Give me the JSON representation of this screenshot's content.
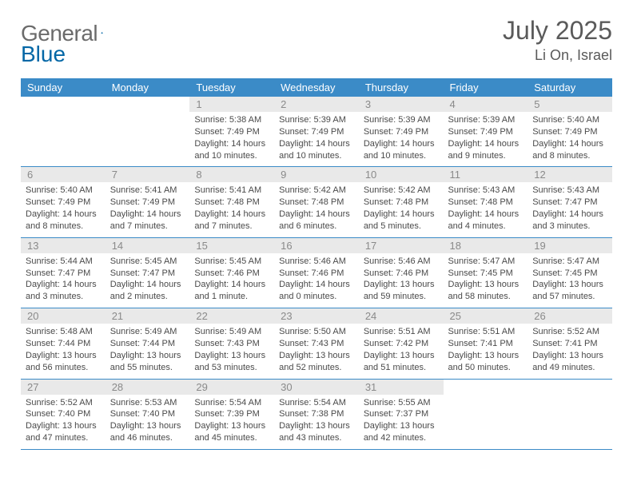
{
  "brand": {
    "word1": "General",
    "word2": "Blue",
    "color1": "#6b6b6b",
    "color2": "#0367a6"
  },
  "title": {
    "month": "July 2025",
    "location": "Li On, Israel"
  },
  "colors": {
    "header_bg": "#3b8bc7",
    "header_text": "#ffffff",
    "daynum_bg": "#e9e9e9",
    "daynum_text": "#8a8a8a",
    "rule": "#3b8bc7",
    "text": "#4a4a4a"
  },
  "weekdays": [
    "Sunday",
    "Monday",
    "Tuesday",
    "Wednesday",
    "Thursday",
    "Friday",
    "Saturday"
  ],
  "first_weekday_index": 2,
  "days": [
    {
      "n": 1,
      "sunrise": "5:38 AM",
      "sunset": "7:49 PM",
      "daylight": "14 hours and 10 minutes."
    },
    {
      "n": 2,
      "sunrise": "5:39 AM",
      "sunset": "7:49 PM",
      "daylight": "14 hours and 10 minutes."
    },
    {
      "n": 3,
      "sunrise": "5:39 AM",
      "sunset": "7:49 PM",
      "daylight": "14 hours and 10 minutes."
    },
    {
      "n": 4,
      "sunrise": "5:39 AM",
      "sunset": "7:49 PM",
      "daylight": "14 hours and 9 minutes."
    },
    {
      "n": 5,
      "sunrise": "5:40 AM",
      "sunset": "7:49 PM",
      "daylight": "14 hours and 8 minutes."
    },
    {
      "n": 6,
      "sunrise": "5:40 AM",
      "sunset": "7:49 PM",
      "daylight": "14 hours and 8 minutes."
    },
    {
      "n": 7,
      "sunrise": "5:41 AM",
      "sunset": "7:49 PM",
      "daylight": "14 hours and 7 minutes."
    },
    {
      "n": 8,
      "sunrise": "5:41 AM",
      "sunset": "7:48 PM",
      "daylight": "14 hours and 7 minutes."
    },
    {
      "n": 9,
      "sunrise": "5:42 AM",
      "sunset": "7:48 PM",
      "daylight": "14 hours and 6 minutes."
    },
    {
      "n": 10,
      "sunrise": "5:42 AM",
      "sunset": "7:48 PM",
      "daylight": "14 hours and 5 minutes."
    },
    {
      "n": 11,
      "sunrise": "5:43 AM",
      "sunset": "7:48 PM",
      "daylight": "14 hours and 4 minutes."
    },
    {
      "n": 12,
      "sunrise": "5:43 AM",
      "sunset": "7:47 PM",
      "daylight": "14 hours and 3 minutes."
    },
    {
      "n": 13,
      "sunrise": "5:44 AM",
      "sunset": "7:47 PM",
      "daylight": "14 hours and 3 minutes."
    },
    {
      "n": 14,
      "sunrise": "5:45 AM",
      "sunset": "7:47 PM",
      "daylight": "14 hours and 2 minutes."
    },
    {
      "n": 15,
      "sunrise": "5:45 AM",
      "sunset": "7:46 PM",
      "daylight": "14 hours and 1 minute."
    },
    {
      "n": 16,
      "sunrise": "5:46 AM",
      "sunset": "7:46 PM",
      "daylight": "14 hours and 0 minutes."
    },
    {
      "n": 17,
      "sunrise": "5:46 AM",
      "sunset": "7:46 PM",
      "daylight": "13 hours and 59 minutes."
    },
    {
      "n": 18,
      "sunrise": "5:47 AM",
      "sunset": "7:45 PM",
      "daylight": "13 hours and 58 minutes."
    },
    {
      "n": 19,
      "sunrise": "5:47 AM",
      "sunset": "7:45 PM",
      "daylight": "13 hours and 57 minutes."
    },
    {
      "n": 20,
      "sunrise": "5:48 AM",
      "sunset": "7:44 PM",
      "daylight": "13 hours and 56 minutes."
    },
    {
      "n": 21,
      "sunrise": "5:49 AM",
      "sunset": "7:44 PM",
      "daylight": "13 hours and 55 minutes."
    },
    {
      "n": 22,
      "sunrise": "5:49 AM",
      "sunset": "7:43 PM",
      "daylight": "13 hours and 53 minutes."
    },
    {
      "n": 23,
      "sunrise": "5:50 AM",
      "sunset": "7:43 PM",
      "daylight": "13 hours and 52 minutes."
    },
    {
      "n": 24,
      "sunrise": "5:51 AM",
      "sunset": "7:42 PM",
      "daylight": "13 hours and 51 minutes."
    },
    {
      "n": 25,
      "sunrise": "5:51 AM",
      "sunset": "7:41 PM",
      "daylight": "13 hours and 50 minutes."
    },
    {
      "n": 26,
      "sunrise": "5:52 AM",
      "sunset": "7:41 PM",
      "daylight": "13 hours and 49 minutes."
    },
    {
      "n": 27,
      "sunrise": "5:52 AM",
      "sunset": "7:40 PM",
      "daylight": "13 hours and 47 minutes."
    },
    {
      "n": 28,
      "sunrise": "5:53 AM",
      "sunset": "7:40 PM",
      "daylight": "13 hours and 46 minutes."
    },
    {
      "n": 29,
      "sunrise": "5:54 AM",
      "sunset": "7:39 PM",
      "daylight": "13 hours and 45 minutes."
    },
    {
      "n": 30,
      "sunrise": "5:54 AM",
      "sunset": "7:38 PM",
      "daylight": "13 hours and 43 minutes."
    },
    {
      "n": 31,
      "sunrise": "5:55 AM",
      "sunset": "7:37 PM",
      "daylight": "13 hours and 42 minutes."
    }
  ],
  "labels": {
    "sunrise": "Sunrise:",
    "sunset": "Sunset:",
    "daylight": "Daylight:"
  }
}
